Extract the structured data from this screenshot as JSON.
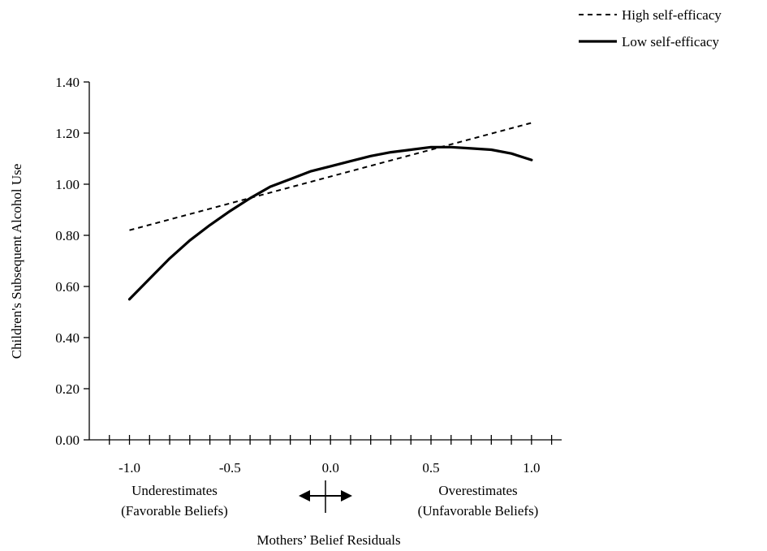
{
  "chart_data": {
    "type": "line",
    "ylabel": "Children's Subsequent Alcohol Use",
    "xlabel": "Mothers’ Belief Residuals",
    "xlim": [
      -1.2,
      1.15
    ],
    "ylim": [
      0,
      1.4
    ],
    "y_ticks": [
      "0.00",
      "0.20",
      "0.40",
      "0.60",
      "0.80",
      "1.00",
      "1.20",
      "1.40"
    ],
    "x_ticks": [
      "-1.0",
      "-0.5",
      "0.0",
      "0.5",
      "1.0"
    ],
    "grid": false,
    "legend_position": "top-right",
    "annotations": {
      "left_line1": "Underestimates",
      "left_line2": "(Favorable Beliefs)",
      "right_line1": "Overestimates",
      "right_line2": "(Unfavorable Beliefs)"
    },
    "series": [
      {
        "name": "High self-efficacy",
        "style": "dashed",
        "x": [
          -1.0,
          1.0
        ],
        "y": [
          0.82,
          1.24
        ]
      },
      {
        "name": "Low self-efficacy",
        "style": "solid",
        "x": [
          -1.0,
          -0.9,
          -0.8,
          -0.7,
          -0.6,
          -0.5,
          -0.4,
          -0.3,
          -0.2,
          -0.1,
          0.0,
          0.1,
          0.2,
          0.3,
          0.4,
          0.5,
          0.6,
          0.7,
          0.8,
          0.9,
          1.0
        ],
        "y": [
          0.55,
          0.63,
          0.71,
          0.78,
          0.84,
          0.895,
          0.945,
          0.99,
          1.02,
          1.05,
          1.07,
          1.09,
          1.11,
          1.125,
          1.135,
          1.145,
          1.145,
          1.14,
          1.135,
          1.12,
          1.095
        ]
      }
    ]
  }
}
